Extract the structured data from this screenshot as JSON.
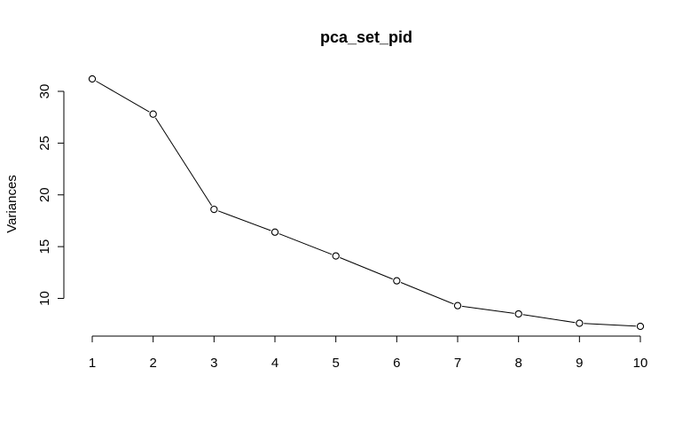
{
  "chart_data": {
    "type": "line",
    "title": "pca_set_pid",
    "ylabel": "Variances",
    "xlabel": "",
    "x": [
      1,
      2,
      3,
      4,
      5,
      6,
      7,
      8,
      9,
      10
    ],
    "x_ticks": [
      "1",
      "2",
      "3",
      "4",
      "5",
      "6",
      "7",
      "8",
      "9",
      "10"
    ],
    "y_ticks": [
      "10",
      "15",
      "20",
      "25",
      "30"
    ],
    "series": [
      {
        "values": [
          31.2,
          27.8,
          18.6,
          16.4,
          14.1,
          11.7,
          9.3,
          8.5,
          7.6,
          7.3
        ]
      }
    ],
    "xlim": [
      1,
      10
    ],
    "ylim": [
      7.3,
      31.2
    ],
    "marker": "open-circle",
    "line_color": "#000000",
    "grid": false,
    "legend": "none"
  }
}
